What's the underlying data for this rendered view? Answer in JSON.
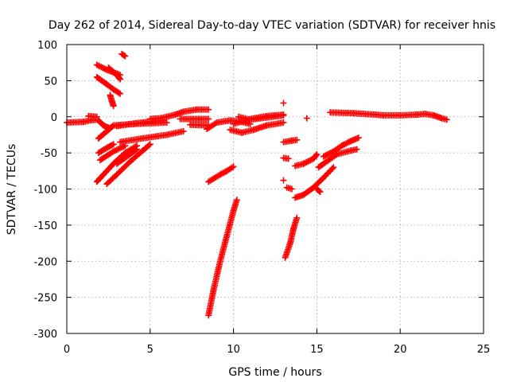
{
  "chart_data": {
    "type": "scatter",
    "title": "Day 262 of 2014, Sidereal Day-to-day VTEC variation (SDTVAR) for receiver hnis",
    "xlabel": "GPS time / hours",
    "ylabel": "SDTVAR / TECUs",
    "xlim": [
      0,
      25
    ],
    "ylim": [
      -300,
      100
    ],
    "xticks": [
      "0",
      "5",
      "10",
      "15",
      "20",
      "25"
    ],
    "yticks": [
      "100",
      "50",
      "0",
      "-50",
      "-100",
      "-150",
      "-200",
      "-250",
      "-300"
    ],
    "grid": true,
    "marker": "+",
    "color": "#ff0000",
    "segments": [
      [
        [
          0.0,
          -8
        ],
        [
          1.0,
          -7
        ],
        [
          1.4,
          -5
        ],
        [
          1.8,
          -4
        ]
      ],
      [
        [
          1.3,
          1
        ],
        [
          1.8,
          0
        ]
      ],
      [
        [
          1.8,
          72
        ],
        [
          2.4,
          65
        ],
        [
          3.2,
          58
        ]
      ],
      [
        [
          1.8,
          55
        ],
        [
          2.4,
          45
        ],
        [
          2.8,
          38
        ],
        [
          3.2,
          32
        ]
      ],
      [
        [
          2.5,
          68
        ],
        [
          3.0,
          58
        ],
        [
          3.2,
          52
        ]
      ],
      [
        [
          3.3,
          87
        ],
        [
          3.5,
          84
        ]
      ],
      [
        [
          2.6,
          30
        ],
        [
          2.7,
          22
        ],
        [
          2.8,
          15
        ]
      ],
      [
        [
          1.9,
          -5
        ],
        [
          2.2,
          -12
        ],
        [
          2.6,
          -16
        ]
      ],
      [
        [
          1.9,
          -30
        ],
        [
          2.4,
          -20
        ],
        [
          2.8,
          -12
        ]
      ],
      [
        [
          1.9,
          -50
        ],
        [
          2.4,
          -43
        ],
        [
          2.8,
          -38
        ]
      ],
      [
        [
          2.8,
          -12
        ],
        [
          4.0,
          -10
        ],
        [
          6.0,
          -8
        ]
      ],
      [
        [
          1.8,
          -90
        ],
        [
          2.2,
          -80
        ],
        [
          2.8,
          -65
        ],
        [
          3.5,
          -50
        ],
        [
          4.2,
          -40
        ]
      ],
      [
        [
          2.4,
          -93
        ],
        [
          3.0,
          -80
        ],
        [
          3.8,
          -62
        ],
        [
          4.5,
          -48
        ],
        [
          5.0,
          -38
        ]
      ],
      [
        [
          2.0,
          -60
        ],
        [
          2.8,
          -48
        ],
        [
          3.5,
          -40
        ]
      ],
      [
        [
          3.0,
          -65
        ],
        [
          3.6,
          -55
        ],
        [
          4.2,
          -45
        ]
      ],
      [
        [
          3.0,
          -13
        ],
        [
          3.8,
          -10
        ],
        [
          4.5,
          -8
        ],
        [
          5.8,
          -5
        ]
      ],
      [
        [
          3.2,
          -35
        ],
        [
          4.5,
          -30
        ],
        [
          6.0,
          -25
        ],
        [
          7.0,
          -20
        ]
      ],
      [
        [
          5.0,
          -3
        ],
        [
          5.6,
          -2
        ],
        [
          6.0,
          0
        ],
        [
          6.5,
          3
        ],
        [
          7.0,
          7
        ],
        [
          7.8,
          10
        ],
        [
          8.5,
          10
        ]
      ],
      [
        [
          6.8,
          -3
        ],
        [
          8.0,
          -3
        ],
        [
          8.5,
          -3
        ]
      ],
      [
        [
          7.4,
          -11
        ],
        [
          8.5,
          -12
        ]
      ],
      [
        [
          8.4,
          -17
        ],
        [
          9.0,
          -8
        ],
        [
          9.8,
          -5
        ],
        [
          10.5,
          -7
        ],
        [
          11.0,
          -10
        ]
      ],
      [
        [
          8.5,
          -90
        ],
        [
          9.2,
          -80
        ],
        [
          9.6,
          -75
        ],
        [
          10.0,
          -69
        ]
      ],
      [
        [
          8.5,
          -275
        ],
        [
          8.8,
          -240
        ],
        [
          9.2,
          -200
        ],
        [
          9.6,
          -165
        ],
        [
          10.0,
          -130
        ],
        [
          10.2,
          -115
        ]
      ],
      [
        [
          9.8,
          -18
        ],
        [
          10.5,
          -22
        ],
        [
          11.2,
          -18
        ],
        [
          12.0,
          -12
        ],
        [
          13.0,
          -8
        ]
      ],
      [
        [
          10.3,
          0
        ],
        [
          11.0,
          -4
        ],
        [
          12.0,
          -1
        ],
        [
          13.0,
          2
        ]
      ],
      [
        [
          10.0,
          -10
        ],
        [
          11.0,
          -3
        ],
        [
          12.0,
          1
        ],
        [
          13.0,
          3
        ]
      ],
      [
        [
          13.0,
          19
        ]
      ],
      [
        [
          13.0,
          -35
        ],
        [
          13.5,
          -33
        ],
        [
          13.8,
          -32
        ]
      ],
      [
        [
          13.0,
          -57
        ],
        [
          13.3,
          -58
        ]
      ],
      [
        [
          13.0,
          -88
        ]
      ],
      [
        [
          13.2,
          -98
        ],
        [
          13.5,
          -100
        ]
      ],
      [
        [
          13.1,
          -195
        ],
        [
          13.4,
          -175
        ],
        [
          13.6,
          -155
        ],
        [
          13.8,
          -140
        ]
      ],
      [
        [
          13.7,
          -68
        ],
        [
          14.2,
          -65
        ],
        [
          14.8,
          -58
        ],
        [
          15.0,
          -52
        ]
      ],
      [
        [
          13.7,
          -112
        ],
        [
          14.2,
          -108
        ],
        [
          14.8,
          -98
        ],
        [
          15.5,
          -82
        ],
        [
          16.0,
          -70
        ]
      ],
      [
        [
          14.4,
          -2
        ]
      ],
      [
        [
          15.0,
          -100
        ],
        [
          15.2,
          -104
        ]
      ],
      [
        [
          15.1,
          -70
        ],
        [
          15.7,
          -60
        ],
        [
          16.2,
          -52
        ],
        [
          17.0,
          -47
        ],
        [
          17.4,
          -45
        ]
      ],
      [
        [
          15.4,
          -55
        ],
        [
          16.0,
          -48
        ],
        [
          16.5,
          -40
        ],
        [
          17.0,
          -34
        ],
        [
          17.5,
          -29
        ]
      ],
      [
        [
          15.8,
          6
        ],
        [
          17.2,
          5
        ],
        [
          18.5,
          3
        ],
        [
          19.0,
          2
        ]
      ],
      [
        [
          19.0,
          2
        ],
        [
          20.0,
          2
        ],
        [
          21.0,
          3
        ],
        [
          21.5,
          4
        ],
        [
          22.0,
          2
        ],
        [
          22.5,
          -2
        ],
        [
          22.8,
          -4
        ]
      ]
    ]
  }
}
